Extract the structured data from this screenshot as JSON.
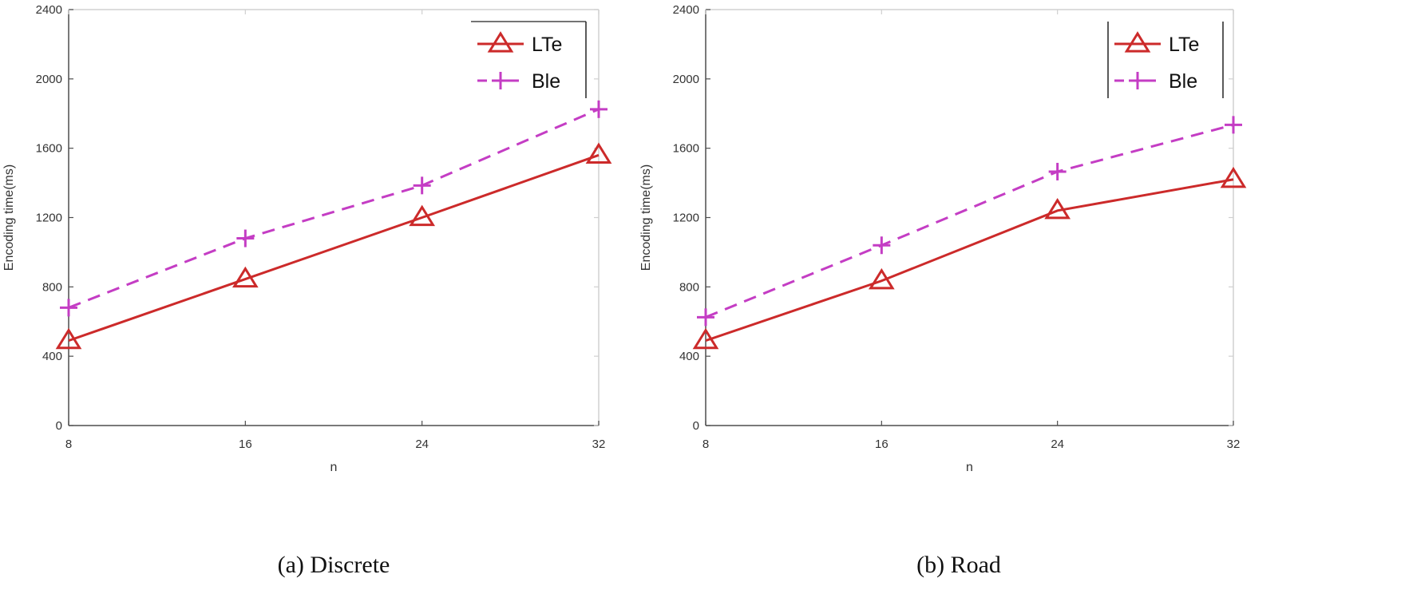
{
  "colors": {
    "lte": "#cc2a2a",
    "ble": "#c43dc4",
    "axis": "#4d4d4d",
    "frame": "#d0d0d0"
  },
  "chart_data": [
    {
      "type": "line",
      "caption": "(a) Discrete",
      "xlabel": "n",
      "ylabel": "Encoding time(ms)",
      "x": [
        8,
        16,
        24,
        32
      ],
      "xticks": [
        "8",
        "16",
        "24",
        "32"
      ],
      "ylim": [
        0,
        2400
      ],
      "yticks": [
        "0",
        "400",
        "800",
        "1200",
        "1600",
        "2000",
        "2400"
      ],
      "grid": false,
      "legend_position": "top-right",
      "series": [
        {
          "name": "LTe",
          "marker": "triangle",
          "linestyle": "solid",
          "values": [
            490,
            845,
            1200,
            1560
          ]
        },
        {
          "name": "Ble",
          "marker": "plus",
          "linestyle": "dashed",
          "values": [
            680,
            1080,
            1385,
            1825
          ]
        }
      ]
    },
    {
      "type": "line",
      "caption": "(b) Road",
      "xlabel": "n",
      "ylabel": "Encoding time(ms)",
      "x": [
        8,
        16,
        24,
        32
      ],
      "xticks": [
        "8",
        "16",
        "24",
        "32"
      ],
      "ylim": [
        0,
        2400
      ],
      "yticks": [
        "0",
        "400",
        "800",
        "1200",
        "1600",
        "2000",
        "2400"
      ],
      "grid": false,
      "legend_position": "top-right",
      "series": [
        {
          "name": "LTe",
          "marker": "triangle",
          "linestyle": "solid",
          "values": [
            490,
            835,
            1240,
            1420
          ]
        },
        {
          "name": "Ble",
          "marker": "plus",
          "linestyle": "dashed",
          "values": [
            625,
            1040,
            1465,
            1735
          ]
        }
      ]
    }
  ]
}
